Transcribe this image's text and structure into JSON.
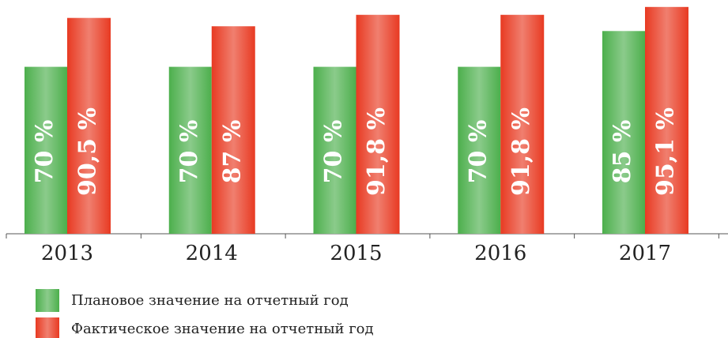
{
  "chart_data": {
    "type": "bar",
    "categories": [
      "2013",
      "2014",
      "2015",
      "2016",
      "2017"
    ],
    "series": [
      {
        "name": "Плановое значение на отчетный год",
        "color": "#4caf4c",
        "values": [
          70,
          70,
          70,
          70,
          85
        ],
        "value_labels": [
          "70 %",
          "70 %",
          "70 %",
          "70 %",
          "85 %"
        ]
      },
      {
        "name": "Фактическое значение на отчетный год",
        "color": "#e83a22",
        "values": [
          90.5,
          87,
          91.8,
          91.8,
          95.1
        ],
        "value_labels": [
          "90,5 %",
          "87 %",
          "91,8 %",
          "91,8 %",
          "95,1 %"
        ]
      }
    ]
  }
}
